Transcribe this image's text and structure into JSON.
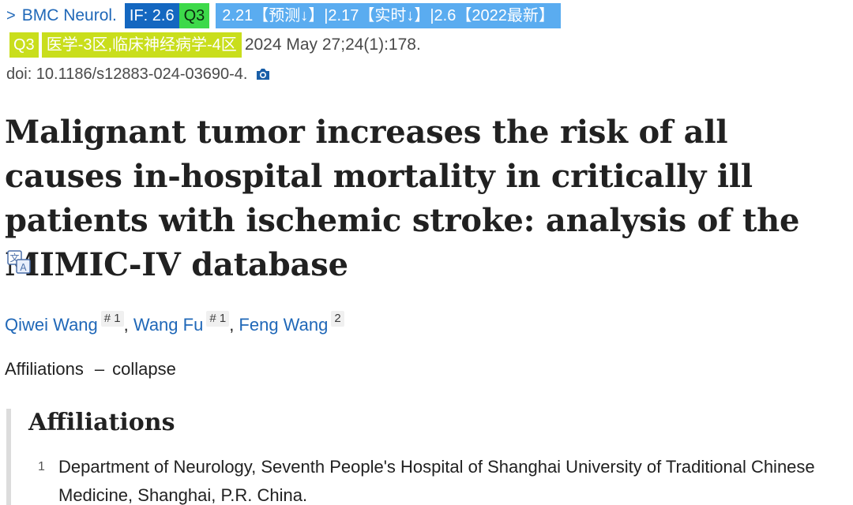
{
  "citation": {
    "journal": "BMC Neurol.",
    "if_badge": "IF: 2.6",
    "quartile_badge": "Q3",
    "prediction_badge": "2.21【预测↓】|2.17【实时↓】|2.6【2022最新】",
    "cas_quartile_badge": "Q3",
    "cas_category_badge": "医学-3区,临床神经病学-4区",
    "pubdate": "2024 May 27;24(1):178.",
    "doi": "doi: 10.1186/s12883-024-03690-4."
  },
  "title": "Malignant tumor increases the risk of all causes in-hospital mortality in critically ill patients with ischemic stroke: analysis of the MIMIC-IV database",
  "authors": [
    {
      "name": "Qiwei Wang",
      "marks": "# 1"
    },
    {
      "name": "Wang Fu",
      "marks": "# 1"
    },
    {
      "name": "Feng Wang",
      "marks": "2"
    }
  ],
  "affiliations_toggle": {
    "label": "Affiliations",
    "dash": "–",
    "action": "collapse"
  },
  "affiliations": {
    "heading": "Affiliations",
    "items": [
      {
        "number": "1",
        "text": "Department of Neurology, Seventh People's Hospital of Shanghai University of Traditional Chinese Medicine, Shanghai, P.R. China."
      }
    ]
  },
  "icons": {
    "journal_chevron": "chevron-right-icon",
    "doi_action": "camera-icon",
    "title_action": "translate-icon"
  },
  "colors": {
    "link": "#2068b8",
    "if_badge_bg": "#1467c0",
    "quartile_green": "#3dd94a",
    "prediction_bg": "#5aacf0",
    "cas_lime": "#c9de1c"
  }
}
